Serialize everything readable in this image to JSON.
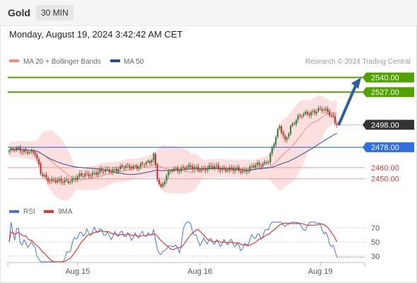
{
  "header": {
    "symbol": "Gold",
    "timeframe": "30 MIN"
  },
  "timestamp": "Monday, August 19, 2024 3:42:42 AM CET",
  "legend": [
    {
      "label": "MA 20 + Bollinger Bands",
      "color": "#f28b82"
    },
    {
      "label": "MA 50",
      "color": "#2c4f8c"
    }
  ],
  "copyright": "Research © 2024 Trading Central",
  "colors": {
    "target": "#52a300",
    "pivot": "#2f6fe0",
    "support": "#e53935",
    "last": "#333333",
    "arrow": "#2d5e9e",
    "up": "#2e7d32",
    "down": "#c62828",
    "band": "#fbd4d4"
  },
  "chart_data": [
    {
      "type": "candlestick",
      "instrument": "Gold",
      "timeframe": "30 MIN",
      "x_ticks": [
        "Aug 15",
        "Aug 16",
        "Aug 19"
      ],
      "ylim": [
        2436,
        2546
      ],
      "key_levels": [
        {
          "value": 2540.0,
          "label": "2540.00",
          "kind": "target"
        },
        {
          "value": 2527.0,
          "label": "2527.00",
          "kind": "target"
        },
        {
          "value": 2498.0,
          "label": "2498.00",
          "kind": "last"
        },
        {
          "value": 2478.0,
          "label": "2478.00",
          "kind": "pivot"
        },
        {
          "value": 2460.0,
          "label": "2460.00",
          "kind": "support"
        },
        {
          "value": 2450.0,
          "label": "2450.00",
          "kind": "support"
        }
      ],
      "path_nodes": [
        [
          0,
          2475
        ],
        [
          5,
          2476
        ],
        [
          10,
          2475
        ],
        [
          14,
          2472
        ],
        [
          17,
          2455
        ],
        [
          22,
          2449
        ],
        [
          27,
          2447
        ],
        [
          33,
          2449
        ],
        [
          42,
          2454
        ],
        [
          52,
          2457
        ],
        [
          62,
          2460
        ],
        [
          70,
          2462
        ],
        [
          76,
          2464
        ],
        [
          78,
          2472
        ],
        [
          80,
          2452
        ],
        [
          82,
          2442
        ],
        [
          85,
          2452
        ],
        [
          88,
          2458
        ],
        [
          94,
          2460
        ],
        [
          104,
          2459
        ],
        [
          112,
          2460
        ],
        [
          120,
          2458
        ],
        [
          126,
          2457
        ],
        [
          132,
          2461
        ],
        [
          136,
          2462
        ],
        [
          140,
          2467
        ],
        [
          143,
          2482
        ],
        [
          146,
          2496
        ],
        [
          149,
          2484
        ],
        [
          152,
          2497
        ],
        [
          156,
          2504
        ],
        [
          160,
          2508
        ],
        [
          164,
          2510
        ],
        [
          168,
          2511
        ],
        [
          172,
          2510
        ],
        [
          175,
          2505
        ],
        [
          177,
          2498
        ]
      ],
      "projection": {
        "from": 2498,
        "to": 2540
      }
    },
    {
      "type": "line",
      "title": "RSI",
      "series": [
        {
          "name": "RSI",
          "color": "#4a74d9"
        },
        {
          "name": "9MA",
          "color": "#e53935"
        }
      ],
      "y_ticks": [
        70,
        50,
        30
      ],
      "ylim": [
        20,
        80
      ]
    }
  ]
}
